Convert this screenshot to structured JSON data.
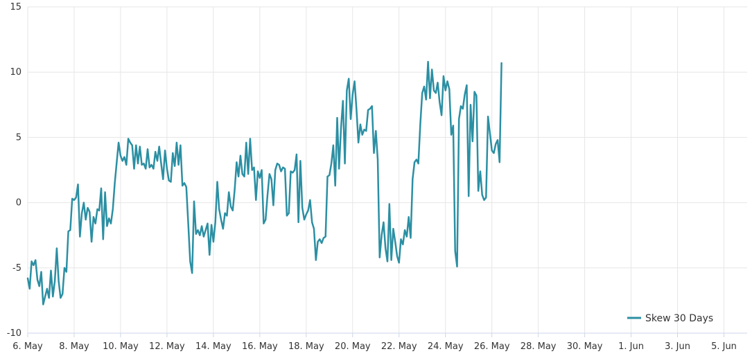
{
  "chart_data": {
    "type": "line",
    "title": "",
    "xlabel": "",
    "ylabel": "",
    "x_range": [
      "2021-05-06",
      "2021-06-06"
    ],
    "ylim": [
      -10,
      15
    ],
    "y_ticks": [
      -10,
      -5,
      0,
      5,
      10,
      15
    ],
    "x_ticks": [
      {
        "date": "2021-05-06",
        "label": "6. May"
      },
      {
        "date": "2021-05-08",
        "label": "8. May"
      },
      {
        "date": "2021-05-10",
        "label": "10. May"
      },
      {
        "date": "2021-05-12",
        "label": "12. May"
      },
      {
        "date": "2021-05-14",
        "label": "14. May"
      },
      {
        "date": "2021-05-16",
        "label": "16. May"
      },
      {
        "date": "2021-05-18",
        "label": "18. May"
      },
      {
        "date": "2021-05-20",
        "label": "20. May"
      },
      {
        "date": "2021-05-22",
        "label": "22. May"
      },
      {
        "date": "2021-05-24",
        "label": "24. May"
      },
      {
        "date": "2021-05-26",
        "label": "26. May"
      },
      {
        "date": "2021-05-28",
        "label": "28. May"
      },
      {
        "date": "2021-05-30",
        "label": "30. May"
      },
      {
        "date": "2021-06-01",
        "label": "1. Jun"
      },
      {
        "date": "2021-06-03",
        "label": "3. Jun"
      },
      {
        "date": "2021-06-05",
        "label": "5. Jun"
      }
    ],
    "grid": true,
    "legend_position": "bottom-right",
    "series": [
      {
        "name": "Skew 30 Days",
        "color": "#2b8fa3",
        "points": [
          [
            "2021-05-06T00:00",
            -5.8
          ],
          [
            "2021-05-06T02:00",
            -6.6
          ],
          [
            "2021-05-06T04:00",
            -4.5
          ],
          [
            "2021-05-06T06:00",
            -4.8
          ],
          [
            "2021-05-06T08:00",
            -4.4
          ],
          [
            "2021-05-06T10:00",
            -5.9
          ],
          [
            "2021-05-06T12:00",
            -6.4
          ],
          [
            "2021-05-06T14:00",
            -5.3
          ],
          [
            "2021-05-06T16:00",
            -7.8
          ],
          [
            "2021-05-06T18:00",
            -7.2
          ],
          [
            "2021-05-06T20:00",
            -6.6
          ],
          [
            "2021-05-06T22:00",
            -7.3
          ],
          [
            "2021-05-07T00:00",
            -5.2
          ],
          [
            "2021-05-07T02:00",
            -7.2
          ],
          [
            "2021-05-07T04:00",
            -6.0
          ],
          [
            "2021-05-07T06:00",
            -3.5
          ],
          [
            "2021-05-07T08:00",
            -6.0
          ],
          [
            "2021-05-07T10:00",
            -7.3
          ],
          [
            "2021-05-07T12:00",
            -7.0
          ],
          [
            "2021-05-07T14:00",
            -5.0
          ],
          [
            "2021-05-07T16:00",
            -5.3
          ],
          [
            "2021-05-07T18:00",
            -2.2
          ],
          [
            "2021-05-07T20:00",
            -2.1
          ],
          [
            "2021-05-07T22:00",
            0.3
          ],
          [
            "2021-05-08T00:00",
            0.2
          ],
          [
            "2021-05-08T02:00",
            0.4
          ],
          [
            "2021-05-08T04:00",
            1.4
          ],
          [
            "2021-05-08T06:00",
            -2.6
          ],
          [
            "2021-05-08T08:00",
            -0.8
          ],
          [
            "2021-05-08T10:00",
            0.0
          ],
          [
            "2021-05-08T12:00",
            -1.3
          ],
          [
            "2021-05-08T14:00",
            -0.4
          ],
          [
            "2021-05-08T16:00",
            -0.7
          ],
          [
            "2021-05-08T18:00",
            -3.0
          ],
          [
            "2021-05-08T20:00",
            -1.1
          ],
          [
            "2021-05-08T22:00",
            -1.6
          ],
          [
            "2021-05-09T00:00",
            -0.5
          ],
          [
            "2021-05-09T02:00",
            -0.6
          ],
          [
            "2021-05-09T04:00",
            1.1
          ],
          [
            "2021-05-09T06:00",
            -2.8
          ],
          [
            "2021-05-09T08:00",
            0.8
          ],
          [
            "2021-05-09T10:00",
            -1.8
          ],
          [
            "2021-05-09T12:00",
            -1.2
          ],
          [
            "2021-05-09T14:00",
            -1.6
          ],
          [
            "2021-05-09T16:00",
            -0.5
          ],
          [
            "2021-05-09T18:00",
            1.5
          ],
          [
            "2021-05-09T20:00",
            3.1
          ],
          [
            "2021-05-09T22:00",
            4.6
          ],
          [
            "2021-05-10T00:00",
            3.6
          ],
          [
            "2021-05-10T02:00",
            3.2
          ],
          [
            "2021-05-10T04:00",
            3.5
          ],
          [
            "2021-05-10T06:00",
            2.9
          ],
          [
            "2021-05-10T08:00",
            4.9
          ],
          [
            "2021-05-10T10:00",
            4.6
          ],
          [
            "2021-05-10T12:00",
            4.4
          ],
          [
            "2021-05-10T14:00",
            2.6
          ],
          [
            "2021-05-10T16:00",
            4.4
          ],
          [
            "2021-05-10T18:00",
            3.0
          ],
          [
            "2021-05-10T20:00",
            4.3
          ],
          [
            "2021-05-10T22:00",
            2.9
          ],
          [
            "2021-05-11T00:00",
            3.0
          ],
          [
            "2021-05-11T02:00",
            2.6
          ],
          [
            "2021-05-11T04:00",
            4.1
          ],
          [
            "2021-05-11T06:00",
            2.7
          ],
          [
            "2021-05-11T08:00",
            2.9
          ],
          [
            "2021-05-11T10:00",
            2.6
          ],
          [
            "2021-05-11T12:00",
            3.9
          ],
          [
            "2021-05-11T14:00",
            3.2
          ],
          [
            "2021-05-11T16:00",
            4.3
          ],
          [
            "2021-05-11T18:00",
            3.0
          ],
          [
            "2021-05-11T20:00",
            1.8
          ],
          [
            "2021-05-11T22:00",
            4.0
          ],
          [
            "2021-05-12T00:00",
            2.6
          ],
          [
            "2021-05-12T02:00",
            1.7
          ],
          [
            "2021-05-12T04:00",
            1.6
          ],
          [
            "2021-05-12T06:00",
            3.8
          ],
          [
            "2021-05-12T08:00",
            2.8
          ],
          [
            "2021-05-12T10:00",
            4.6
          ],
          [
            "2021-05-12T12:00",
            2.9
          ],
          [
            "2021-05-12T14:00",
            4.4
          ],
          [
            "2021-05-12T16:00",
            1.3
          ],
          [
            "2021-05-12T18:00",
            1.5
          ],
          [
            "2021-05-12T20:00",
            1.2
          ],
          [
            "2021-05-12T22:00",
            -1.6
          ],
          [
            "2021-05-13T00:00",
            -4.5
          ],
          [
            "2021-05-13T02:00",
            -5.4
          ],
          [
            "2021-05-13T04:00",
            0.1
          ],
          [
            "2021-05-13T06:00",
            -2.4
          ],
          [
            "2021-05-13T08:00",
            -2.1
          ],
          [
            "2021-05-13T10:00",
            -2.5
          ],
          [
            "2021-05-13T12:00",
            -1.8
          ],
          [
            "2021-05-13T14:00",
            -2.6
          ],
          [
            "2021-05-13T16:00",
            -2.1
          ],
          [
            "2021-05-13T18:00",
            -1.6
          ],
          [
            "2021-05-13T20:00",
            -4.0
          ],
          [
            "2021-05-13T22:00",
            -1.7
          ],
          [
            "2021-05-14T00:00",
            -3.0
          ],
          [
            "2021-05-14T02:00",
            -1.5
          ],
          [
            "2021-05-14T04:00",
            1.6
          ],
          [
            "2021-05-14T06:00",
            -0.5
          ],
          [
            "2021-05-14T08:00",
            -1.3
          ],
          [
            "2021-05-14T10:00",
            -2.0
          ],
          [
            "2021-05-14T12:00",
            -0.8
          ],
          [
            "2021-05-14T14:00",
            -1.0
          ],
          [
            "2021-05-14T16:00",
            0.8
          ],
          [
            "2021-05-14T18:00",
            -0.3
          ],
          [
            "2021-05-14T20:00",
            -0.6
          ],
          [
            "2021-05-14T22:00",
            1.0
          ],
          [
            "2021-05-15T00:00",
            3.1
          ],
          [
            "2021-05-15T02:00",
            2.0
          ],
          [
            "2021-05-15T04:00",
            3.6
          ],
          [
            "2021-05-15T06:00",
            2.2
          ],
          [
            "2021-05-15T08:00",
            2.0
          ],
          [
            "2021-05-15T10:00",
            4.6
          ],
          [
            "2021-05-15T12:00",
            2.2
          ],
          [
            "2021-05-15T14:00",
            4.9
          ],
          [
            "2021-05-15T16:00",
            2.5
          ],
          [
            "2021-05-15T18:00",
            2.7
          ],
          [
            "2021-05-15T20:00",
            0.2
          ],
          [
            "2021-05-15T22:00",
            2.4
          ],
          [
            "2021-05-16T00:00",
            1.9
          ],
          [
            "2021-05-16T02:00",
            2.5
          ],
          [
            "2021-05-16T04:00",
            -1.6
          ],
          [
            "2021-05-16T06:00",
            -1.3
          ],
          [
            "2021-05-16T08:00",
            0.6
          ],
          [
            "2021-05-16T10:00",
            2.2
          ],
          [
            "2021-05-16T12:00",
            1.8
          ],
          [
            "2021-05-16T14:00",
            -0.2
          ],
          [
            "2021-05-16T16:00",
            2.5
          ],
          [
            "2021-05-16T18:00",
            3.0
          ],
          [
            "2021-05-16T20:00",
            2.9
          ],
          [
            "2021-05-16T22:00",
            2.4
          ],
          [
            "2021-05-17T00:00",
            2.7
          ],
          [
            "2021-05-17T02:00",
            2.6
          ],
          [
            "2021-05-17T04:00",
            -1.0
          ],
          [
            "2021-05-17T06:00",
            -0.8
          ],
          [
            "2021-05-17T08:00",
            2.4
          ],
          [
            "2021-05-17T10:00",
            2.3
          ],
          [
            "2021-05-17T12:00",
            2.5
          ],
          [
            "2021-05-17T14:00",
            3.7
          ],
          [
            "2021-05-17T16:00",
            -1.5
          ],
          [
            "2021-05-17T18:00",
            3.2
          ],
          [
            "2021-05-17T20:00",
            -0.4
          ],
          [
            "2021-05-17T22:00",
            -1.3
          ],
          [
            "2021-05-18T00:00",
            -0.9
          ],
          [
            "2021-05-18T02:00",
            -0.6
          ],
          [
            "2021-05-18T04:00",
            0.2
          ],
          [
            "2021-05-18T06:00",
            -1.5
          ],
          [
            "2021-05-18T08:00",
            -2.0
          ],
          [
            "2021-05-18T10:00",
            -4.4
          ],
          [
            "2021-05-18T12:00",
            -3.0
          ],
          [
            "2021-05-18T14:00",
            -2.8
          ],
          [
            "2021-05-18T16:00",
            -3.1
          ],
          [
            "2021-05-18T18:00",
            -2.7
          ],
          [
            "2021-05-18T20:00",
            -2.6
          ],
          [
            "2021-05-18T22:00",
            2.0
          ],
          [
            "2021-05-19T00:00",
            2.1
          ],
          [
            "2021-05-19T02:00",
            3.0
          ],
          [
            "2021-05-19T04:00",
            4.4
          ],
          [
            "2021-05-19T06:00",
            1.3
          ],
          [
            "2021-05-19T08:00",
            6.5
          ],
          [
            "2021-05-19T10:00",
            2.6
          ],
          [
            "2021-05-19T12:00",
            5.7
          ],
          [
            "2021-05-19T14:00",
            7.8
          ],
          [
            "2021-05-19T16:00",
            3.0
          ],
          [
            "2021-05-19T18:00",
            8.6
          ],
          [
            "2021-05-19T20:00",
            9.5
          ],
          [
            "2021-05-19T22:00",
            6.4
          ],
          [
            "2021-05-20T00:00",
            8.3
          ],
          [
            "2021-05-20T02:00",
            9.3
          ],
          [
            "2021-05-20T04:00",
            7.1
          ],
          [
            "2021-05-20T06:00",
            4.6
          ],
          [
            "2021-05-20T08:00",
            6.0
          ],
          [
            "2021-05-20T10:00",
            5.2
          ],
          [
            "2021-05-20T12:00",
            5.6
          ],
          [
            "2021-05-20T14:00",
            5.5
          ],
          [
            "2021-05-20T16:00",
            7.1
          ],
          [
            "2021-05-20T18:00",
            7.2
          ],
          [
            "2021-05-20T20:00",
            7.4
          ],
          [
            "2021-05-20T22:00",
            3.8
          ],
          [
            "2021-05-21T00:00",
            5.5
          ],
          [
            "2021-05-21T02:00",
            3.3
          ],
          [
            "2021-05-21T04:00",
            -4.2
          ],
          [
            "2021-05-21T06:00",
            -2.5
          ],
          [
            "2021-05-21T08:00",
            -1.5
          ],
          [
            "2021-05-21T10:00",
            -3.5
          ],
          [
            "2021-05-21T12:00",
            -4.5
          ],
          [
            "2021-05-21T14:00",
            -0.1
          ],
          [
            "2021-05-21T16:00",
            -4.4
          ],
          [
            "2021-05-21T18:00",
            -2.0
          ],
          [
            "2021-05-21T20:00",
            -3.0
          ],
          [
            "2021-05-21T22:00",
            -4.1
          ],
          [
            "2021-05-22T00:00",
            -4.6
          ],
          [
            "2021-05-22T02:00",
            -2.8
          ],
          [
            "2021-05-22T04:00",
            -3.2
          ],
          [
            "2021-05-22T06:00",
            -2.1
          ],
          [
            "2021-05-22T08:00",
            -2.6
          ],
          [
            "2021-05-22T10:00",
            -1.1
          ],
          [
            "2021-05-22T12:00",
            -2.7
          ],
          [
            "2021-05-22T14:00",
            1.8
          ],
          [
            "2021-05-22T16:00",
            3.1
          ],
          [
            "2021-05-22T18:00",
            3.3
          ],
          [
            "2021-05-22T20:00",
            3.0
          ],
          [
            "2021-05-22T22:00",
            6.0
          ],
          [
            "2021-05-23T00:00",
            8.4
          ],
          [
            "2021-05-23T02:00",
            8.9
          ],
          [
            "2021-05-23T04:00",
            7.9
          ],
          [
            "2021-05-23T06:00",
            10.8
          ],
          [
            "2021-05-23T08:00",
            8.0
          ],
          [
            "2021-05-23T10:00",
            10.2
          ],
          [
            "2021-05-23T12:00",
            8.6
          ],
          [
            "2021-05-23T14:00",
            8.4
          ],
          [
            "2021-05-23T16:00",
            9.2
          ],
          [
            "2021-05-23T18:00",
            7.7
          ],
          [
            "2021-05-23T20:00",
            6.7
          ],
          [
            "2021-05-23T22:00",
            9.7
          ],
          [
            "2021-05-24T00:00",
            8.6
          ],
          [
            "2021-05-24T02:00",
            9.3
          ],
          [
            "2021-05-24T04:00",
            8.7
          ],
          [
            "2021-05-24T06:00",
            5.2
          ],
          [
            "2021-05-24T08:00",
            5.9
          ],
          [
            "2021-05-24T10:00",
            -3.7
          ],
          [
            "2021-05-24T12:00",
            -4.9
          ],
          [
            "2021-05-24T14:00",
            6.4
          ],
          [
            "2021-05-24T16:00",
            7.4
          ],
          [
            "2021-05-24T18:00",
            7.2
          ],
          [
            "2021-05-24T20:00",
            8.3
          ],
          [
            "2021-05-24T22:00",
            9.0
          ],
          [
            "2021-05-25T00:00",
            0.5
          ],
          [
            "2021-05-25T02:00",
            7.5
          ],
          [
            "2021-05-25T04:00",
            4.7
          ],
          [
            "2021-05-25T06:00",
            8.5
          ],
          [
            "2021-05-25T08:00",
            8.2
          ],
          [
            "2021-05-25T10:00",
            0.9
          ],
          [
            "2021-05-25T12:00",
            2.4
          ],
          [
            "2021-05-25T14:00",
            0.6
          ],
          [
            "2021-05-25T16:00",
            0.2
          ],
          [
            "2021-05-25T18:00",
            0.4
          ],
          [
            "2021-05-25T20:00",
            6.6
          ],
          [
            "2021-05-25T22:00",
            5.3
          ],
          [
            "2021-05-26T00:00",
            4.0
          ],
          [
            "2021-05-26T02:00",
            3.8
          ],
          [
            "2021-05-26T04:00",
            4.5
          ],
          [
            "2021-05-26T06:00",
            4.8
          ],
          [
            "2021-05-26T08:00",
            3.1
          ],
          [
            "2021-05-26T10:00",
            10.7
          ]
        ]
      }
    ]
  }
}
